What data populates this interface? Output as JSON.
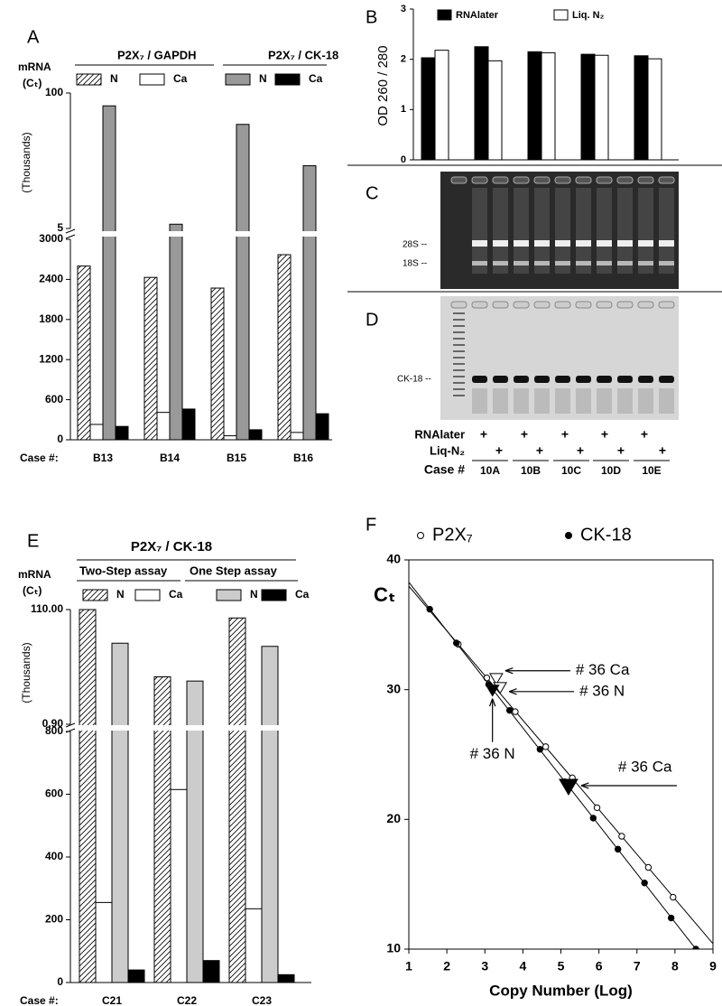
{
  "panel_labels": [
    "A",
    "B",
    "C",
    "D",
    "E",
    "F"
  ],
  "chart_data": [
    {
      "type": "broken-bar",
      "ylabel": "mRNA",
      "ylabel_unit": "(Cₜ)",
      "upper_axis_label": "(Thousands)",
      "category_label": "Case #:",
      "categories": [
        "B13",
        "B14",
        "B15",
        "B16"
      ],
      "ylim": [
        0,
        3000
      ],
      "yticks": [
        0,
        600,
        1200,
        1800,
        2400,
        3000
      ],
      "ylim_upper": [
        5000,
        100000
      ],
      "yticks_upper": [
        {
          "value": 5000,
          "label": "5"
        },
        {
          "value": 100000,
          "label": "100"
        }
      ],
      "series_groups": [
        {
          "name": "P2X₇ / GAPDH",
          "series": [
            {
              "name": "N",
              "color": "#ffffff",
              "hatch": true,
              "values": [
                2600,
                2430,
                2270,
                2770
              ]
            },
            {
              "name": "Ca",
              "color": "#ffffff",
              "values": [
                230,
                410,
                60,
                110
              ]
            }
          ]
        },
        {
          "name": "P2X₇ / CK-18",
          "series": [
            {
              "name": "N",
              "color": "#999999",
              "values": [
                91000,
                8000,
                78000,
                49000
              ]
            },
            {
              "name": "Ca",
              "color": "#000000",
              "values": [
                200,
                460,
                150,
                390
              ]
            }
          ]
        }
      ]
    },
    {
      "type": "bar",
      "ylabel": "OD 260 / 280",
      "categories": [
        null,
        null,
        null,
        null,
        null
      ],
      "ylim": [
        0,
        3
      ],
      "yticks": [
        0,
        1,
        2,
        3
      ],
      "series": [
        {
          "name": "RNAlater",
          "color": "#000000",
          "values": [
            2.03,
            2.25,
            2.15,
            2.1,
            2.07
          ]
        },
        {
          "name": "Liq. N₂",
          "color": "#ffffff",
          "values": [
            2.18,
            1.97,
            2.13,
            2.08,
            2.01
          ]
        }
      ]
    },
    {
      "type": "broken-bar",
      "title": "P2X₇ / CK-18",
      "ylabel": "mRNA",
      "ylabel_unit": "(Cₜ)",
      "upper_axis_label": "(Thousands)",
      "category_label": "Case #:",
      "categories": [
        "C21",
        "C22",
        "C23"
      ],
      "ylim": [
        0,
        800
      ],
      "yticks": [
        0,
        200,
        400,
        600,
        800
      ],
      "ylim_upper": [
        900,
        110000
      ],
      "yticks_upper": [
        {
          "value": 900,
          "label": "0.90"
        },
        {
          "value": 110000,
          "label": "110.00"
        }
      ],
      "series_groups": [
        {
          "name": "Two-Step assay",
          "series": [
            {
              "name": "N",
              "color": "#ffffff",
              "hatch": true,
              "values": [
                110000,
                46000,
                102000
              ]
            },
            {
              "name": "Ca",
              "color": "#ffffff",
              "values": [
                255,
                615,
                235
              ]
            }
          ]
        },
        {
          "name": "One Step assay",
          "series": [
            {
              "name": "N",
              "color": "#cccccc",
              "values": [
                78000,
                42000,
                75000
              ]
            },
            {
              "name": "Ca",
              "color": "#000000",
              "values": [
                40,
                70,
                25
              ]
            }
          ]
        }
      ]
    },
    {
      "type": "scatter",
      "ylabel": "Cₜ",
      "xlabel": "Copy Number (Log)",
      "xlim": [
        1,
        9
      ],
      "xticks": [
        1,
        2,
        3,
        4,
        5,
        6,
        7,
        8,
        9
      ],
      "ylim": [
        10,
        40
      ],
      "yticks": [
        10,
        20,
        30,
        40
      ],
      "fit_lines": true,
      "series": [
        {
          "name": "P2X₇",
          "marker": "open",
          "x": [
            2.3,
            3.05,
            3.8,
            4.6,
            5.3,
            5.95,
            6.6,
            7.3,
            7.95
          ],
          "values": [
            33.5,
            30.9,
            28.3,
            25.6,
            23.2,
            20.9,
            18.7,
            16.3,
            14.0
          ]
        },
        {
          "name": "CK-18",
          "marker": "filled",
          "x": [
            1.55,
            2.25,
            3.1,
            3.65,
            4.45,
            5.1,
            5.85,
            6.5,
            7.2,
            7.9,
            8.55
          ],
          "values": [
            36.2,
            33.6,
            30.4,
            28.4,
            25.4,
            22.9,
            20.1,
            17.7,
            15.1,
            12.4,
            10.0
          ]
        }
      ],
      "annotations": [
        {
          "text": "# 36 Ca",
          "marker": "open",
          "x": 3.3,
          "y": 30.9
        },
        {
          "text": "# 36 N",
          "marker": "open",
          "x": 3.4,
          "y": 30.2
        },
        {
          "text": "# 36 N",
          "marker": "filled",
          "x": 3.2,
          "y": 30.0
        },
        {
          "text": "# 36 Ca",
          "marker": "filled",
          "x": 5.2,
          "y": 22.6
        }
      ]
    }
  ],
  "gels": {
    "C_labels": [
      "28S --",
      "18S --"
    ],
    "D_labels": [
      "CK-18 --"
    ]
  },
  "lane_table": {
    "rows": [
      {
        "label": "RNAlater",
        "marks": [
          "+",
          "+",
          "+",
          "+",
          "+"
        ]
      },
      {
        "label": "Liq-N₂",
        "marks": [
          "+",
          "+",
          "+",
          "+",
          "+"
        ]
      }
    ],
    "case_label": "Case #",
    "cases": [
      "10A",
      "10B",
      "10C",
      "10D",
      "10E"
    ]
  }
}
